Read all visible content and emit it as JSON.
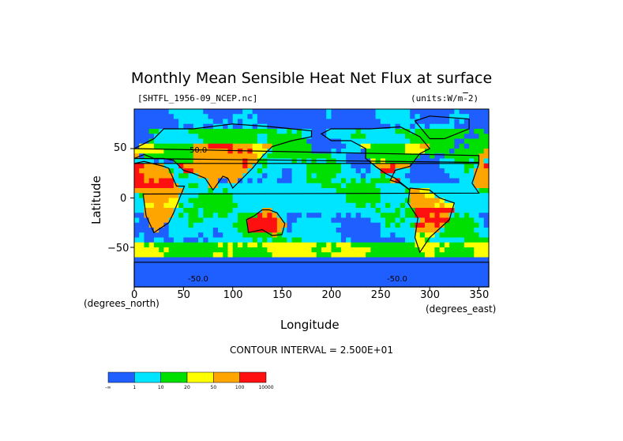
{
  "chart_data": {
    "type": "heatmap",
    "title": "Monthly Mean Sensible Heat Net Flux at surface",
    "file_label": "[SHTFL_1956-09_NCEP.nc]",
    "units_label": "(units:W/m^2)",
    "xlabel": "Longitude",
    "ylabel": "Latitude",
    "x_unit_label": "(degrees_east)",
    "y_unit_label": "(degrees_north)",
    "xlim": [
      0,
      357.5
    ],
    "ylim": [
      -90,
      90
    ],
    "x_ticks": [
      "0",
      "50",
      "100",
      "150",
      "200",
      "250",
      "300",
      "350"
    ],
    "y_ticks": [
      "50",
      "0",
      "−50"
    ],
    "contour_interval": "CONTOUR INTERVAL = 2.500E+01",
    "contour_labels": [
      "50.0",
      "-50.0",
      "-50.0"
    ],
    "colorbar": {
      "colors": [
        "#1f5fff",
        "#00e5ff",
        "#00e000",
        "#ffff00",
        "#ffa500",
        "#ff1010"
      ],
      "labels": [
        "-∞",
        "1",
        "10",
        "20",
        "50",
        "100",
        "10000"
      ]
    }
  }
}
